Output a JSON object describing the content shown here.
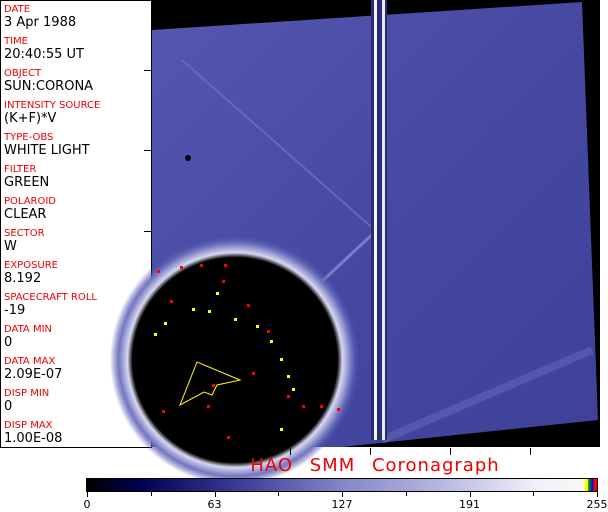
{
  "header_fields": [
    {
      "label": "DATE",
      "value": "3 Apr 1988"
    },
    {
      "label": "TIME",
      "value": "20:40:55 UT"
    },
    {
      "label": "OBJECT",
      "value": "SUN:CORONA"
    },
    {
      "label": "INTENSITY SOURCE",
      "value": "(K+F)*V"
    },
    {
      "label": "TYPE-OBS",
      "value": "WHITE LIGHT"
    },
    {
      "label": "FILTER",
      "value": "GREEN"
    },
    {
      "label": "POLAROID",
      "value": "CLEAR"
    },
    {
      "label": "SECTOR",
      "value": "W"
    },
    {
      "label": "EXPOSURE",
      "value": "8.192"
    },
    {
      "label": "SPACECRAFT ROLL",
      "value": "-19"
    },
    {
      "label": "DATA MIN",
      "value": "0"
    },
    {
      "label": "DATA MAX",
      "value": "2.09E-07"
    },
    {
      "label": "DISP MIN",
      "value": "0"
    },
    {
      "label": "DISP MAX",
      "value": "1.00E-08"
    }
  ],
  "title": "HAO  SMM Coronagraph",
  "colorbar": {
    "ticks": [
      "0",
      "63",
      "127",
      "191",
      "255"
    ],
    "colors": {
      "low": "#000000",
      "mid": "#3a3c98",
      "high": "#f8f8f8"
    }
  }
}
